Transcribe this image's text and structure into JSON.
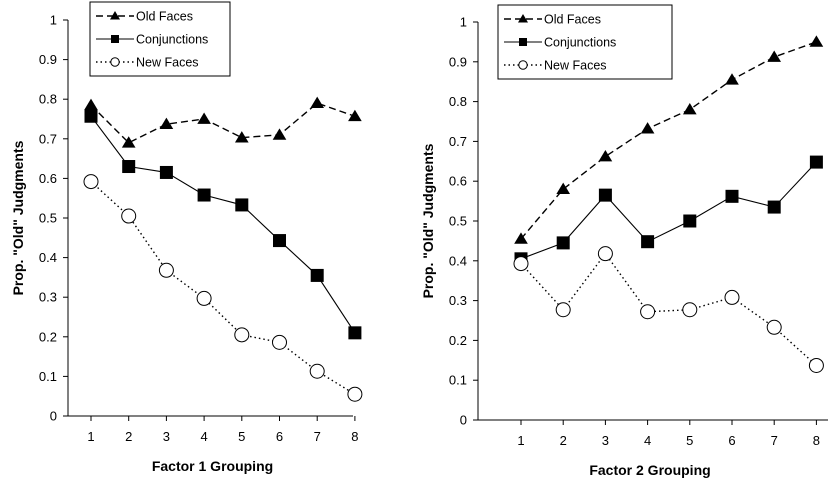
{
  "chart_data": [
    {
      "type": "line",
      "title": "",
      "xlabel": "Factor 1 Grouping",
      "ylabel": "Prop. \"Old\" Judgments",
      "x": [
        1,
        2,
        3,
        4,
        5,
        6,
        7,
        8
      ],
      "ylim": [
        0,
        1
      ],
      "yticks": [
        "0",
        "0.1",
        "0.2",
        "0.3",
        "0.4",
        "0.5",
        "0.6",
        "0.7",
        "0.8",
        "0.9",
        "1"
      ],
      "grid": false,
      "legend": "top-left",
      "series": [
        {
          "name": "Old Faces",
          "marker": "triangle",
          "line": "dashed",
          "values": [
            0.785,
            0.69,
            0.737,
            0.75,
            0.703,
            0.71,
            0.79,
            0.757
          ]
        },
        {
          "name": "Conjunctions",
          "marker": "square",
          "line": "solid",
          "values": [
            0.757,
            0.63,
            0.615,
            0.558,
            0.533,
            0.443,
            0.355,
            0.21
          ]
        },
        {
          "name": "New Faces",
          "marker": "open-circle",
          "line": "dotted",
          "values": [
            0.592,
            0.505,
            0.368,
            0.297,
            0.205,
            0.186,
            0.113,
            0.055
          ]
        }
      ]
    },
    {
      "type": "line",
      "title": "",
      "xlabel": "Factor 2 Grouping",
      "ylabel": "Prop. \"Old\" Judgments",
      "x": [
        1,
        2,
        3,
        4,
        5,
        6,
        7,
        8
      ],
      "ylim": [
        0,
        1
      ],
      "yticks": [
        "0",
        "0.1",
        "0.2",
        "0.3",
        "0.4",
        "0.5",
        "0.6",
        "0.7",
        "0.8",
        "0.9",
        "1"
      ],
      "grid": false,
      "legend": "top-left",
      "series": [
        {
          "name": "Old Faces",
          "marker": "triangle",
          "line": "dashed",
          "values": [
            0.455,
            0.58,
            0.662,
            0.732,
            0.78,
            0.855,
            0.912,
            0.95
          ]
        },
        {
          "name": "Conjunctions",
          "marker": "square",
          "line": "solid",
          "values": [
            0.405,
            0.445,
            0.565,
            0.448,
            0.5,
            0.562,
            0.535,
            0.648
          ]
        },
        {
          "name": "New Faces",
          "marker": "open-circle",
          "line": "dotted",
          "values": [
            0.393,
            0.277,
            0.418,
            0.272,
            0.277,
            0.308,
            0.233,
            0.137
          ]
        }
      ]
    }
  ]
}
